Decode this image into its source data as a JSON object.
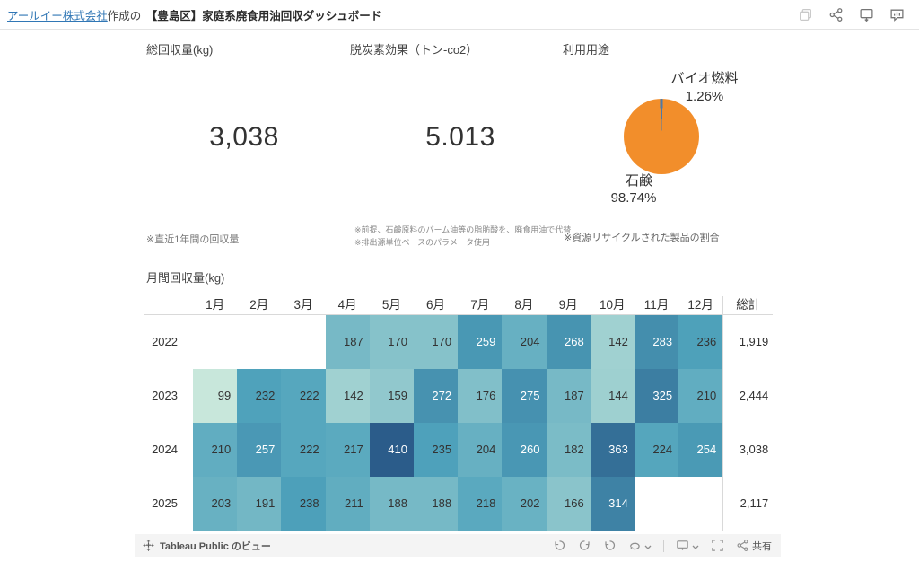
{
  "header": {
    "author_link": "アールイー株式会社",
    "author_suffix": "作成の",
    "title": "【豊島区】家庭系廃食用油回収ダッシュボード",
    "icon_names": [
      "duplicate-icon",
      "share-icon",
      "present-download-icon",
      "metrics-bubble-icon"
    ]
  },
  "kpis": [
    {
      "label": "総回収量(kg)",
      "value": "3,038"
    },
    {
      "label": "脱炭素効果（トン-co2）",
      "value": "5.013"
    }
  ],
  "notes": {
    "kpi1": "※直近1年間の回収量",
    "kpi2_line1": "※前提、石鹸原料のパーム油等の脂肪酸を、廃食用油で代替",
    "kpi2_line2": "※排出源単位ベースのパラメータ使用",
    "pie": "※資源リサイクルされた製品の割合"
  },
  "chart_data": [
    {
      "type": "pie",
      "title": "利用用途",
      "start_angle": "top-centered-minor-slice",
      "slices": [
        {
          "label": "バイオ燃料",
          "pct": 1.26,
          "pct_label": "1.26%",
          "color": "#4e79a7"
        },
        {
          "label": "石鹸",
          "pct": 98.74,
          "pct_label": "98.74%",
          "color": "#f28e2b"
        }
      ]
    },
    {
      "type": "heatmap",
      "title": "月間回収量(kg)",
      "columns": [
        "1月",
        "2月",
        "3月",
        "4月",
        "5月",
        "6月",
        "7月",
        "8月",
        "9月",
        "10月",
        "11月",
        "12月"
      ],
      "total_label": "総計",
      "rows": [
        {
          "year": "2022",
          "values": [
            null,
            null,
            null,
            187,
            170,
            170,
            259,
            204,
            268,
            142,
            283,
            236
          ],
          "total": "1,919"
        },
        {
          "year": "2023",
          "values": [
            99,
            232,
            222,
            142,
            159,
            272,
            176,
            275,
            187,
            144,
            325,
            210
          ],
          "total": "2,444"
        },
        {
          "year": "2024",
          "values": [
            210,
            257,
            222,
            217,
            410,
            235,
            204,
            260,
            182,
            363,
            224,
            254
          ],
          "total": "3,038"
        },
        {
          "year": "2025",
          "values": [
            203,
            191,
            238,
            211,
            188,
            188,
            218,
            202,
            166,
            314,
            null,
            null
          ],
          "total": "2,117"
        }
      ],
      "color_scale": {
        "stops": [
          [
            99,
            "#c8e7db"
          ],
          [
            230,
            "#4fa3bc"
          ],
          [
            410,
            "#2b5c8a"
          ]
        ],
        "white_text_min": 250
      }
    }
  ],
  "toolbar": {
    "brand": "Tableau Public のビュー",
    "share_label": "共有"
  }
}
